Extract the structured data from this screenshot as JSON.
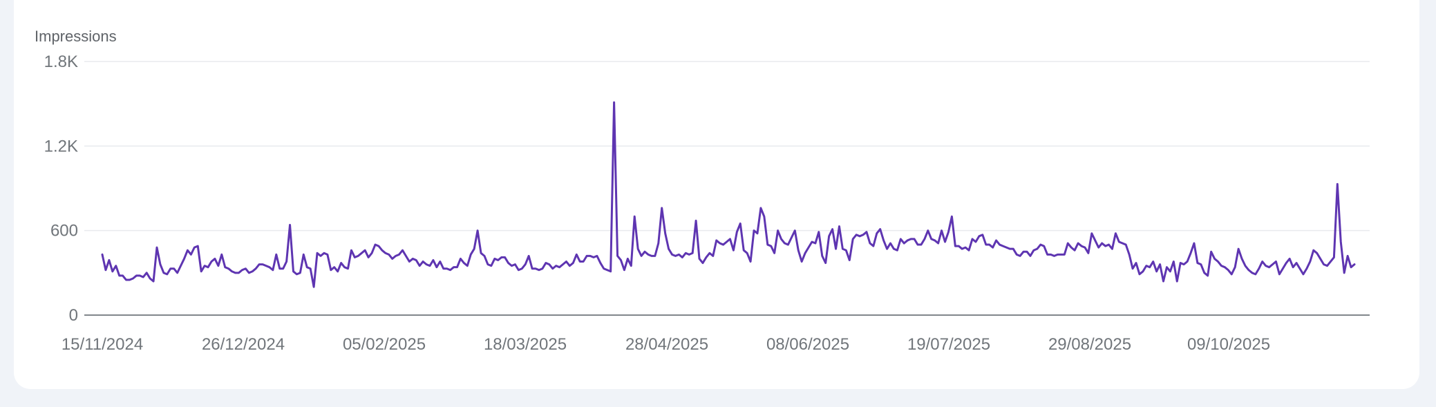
{
  "metric_label": "Impressions",
  "colors": {
    "line": "#5e35b1",
    "grid": "#e8eaed",
    "axis": "#80868b",
    "text": "#70757a",
    "background": "#f0f3f8",
    "card": "#ffffff"
  },
  "chart_data": {
    "type": "line",
    "title": "",
    "ylabel": "Impressions",
    "xlabel": "",
    "ylim": [
      0,
      1800
    ],
    "yticks": [
      0,
      600,
      1200,
      1800
    ],
    "ytick_labels": [
      "0",
      "600",
      "1.2K",
      "1.8K"
    ],
    "xtick_labels": [
      "15/11/2024",
      "26/12/2024",
      "05/02/2025",
      "18/03/2025",
      "28/04/2025",
      "08/06/2025",
      "19/07/2025",
      "29/08/2025",
      "09/10/2025"
    ],
    "grid": true,
    "series": [
      {
        "name": "Impressions",
        "x_start": "15/11/2024",
        "x_step_days": 1,
        "values": [
          430,
          320,
          390,
          310,
          350,
          280,
          280,
          250,
          250,
          260,
          280,
          280,
          270,
          300,
          260,
          240,
          480,
          360,
          300,
          290,
          330,
          330,
          300,
          350,
          400,
          460,
          430,
          480,
          490,
          310,
          350,
          340,
          380,
          400,
          350,
          430,
          340,
          330,
          310,
          300,
          300,
          320,
          330,
          300,
          310,
          330,
          360,
          360,
          350,
          340,
          320,
          430,
          330,
          330,
          380,
          640,
          310,
          290,
          300,
          430,
          340,
          330,
          200,
          440,
          420,
          440,
          430,
          320,
          340,
          310,
          370,
          340,
          330,
          460,
          410,
          420,
          440,
          460,
          410,
          440,
          500,
          490,
          460,
          440,
          430,
          400,
          420,
          430,
          460,
          420,
          380,
          400,
          390,
          350,
          380,
          360,
          350,
          390,
          340,
          380,
          330,
          330,
          320,
          340,
          340,
          400,
          370,
          350,
          430,
          470,
          600,
          440,
          420,
          360,
          350,
          400,
          390,
          410,
          410,
          370,
          350,
          360,
          320,
          330,
          360,
          420,
          330,
          330,
          320,
          330,
          370,
          360,
          330,
          350,
          340,
          360,
          380,
          350,
          370,
          430,
          380,
          380,
          420,
          420,
          410,
          420,
          370,
          330,
          320,
          310,
          1510,
          420,
          390,
          320,
          400,
          350,
          700,
          470,
          420,
          450,
          430,
          420,
          420,
          510,
          760,
          580,
          470,
          430,
          420,
          430,
          410,
          440,
          430,
          440,
          670,
          400,
          370,
          410,
          440,
          420,
          530,
          510,
          500,
          520,
          540,
          460,
          590,
          650,
          460,
          440,
          380,
          600,
          580,
          760,
          700,
          500,
          490,
          440,
          600,
          540,
          510,
          500,
          550,
          600,
          460,
          380,
          440,
          480,
          520,
          510,
          590,
          420,
          370,
          560,
          610,
          470,
          630,
          470,
          460,
          390,
          540,
          570,
          560,
          570,
          590,
          510,
          490,
          580,
          610,
          530,
          470,
          510,
          470,
          460,
          540,
          510,
          530,
          540,
          540,
          500,
          500,
          540,
          600,
          540,
          530,
          510,
          600,
          520,
          590,
          700,
          490,
          490,
          470,
          480,
          460,
          540,
          520,
          560,
          570,
          500,
          500,
          480,
          530,
          500,
          490,
          480,
          470,
          470,
          430,
          420,
          450,
          450,
          420,
          460,
          470,
          500,
          490,
          430,
          430,
          420,
          430,
          430,
          430,
          510,
          480,
          460,
          510,
          490,
          480,
          440,
          580,
          530,
          480,
          510,
          490,
          500,
          470,
          580,
          520,
          510,
          500,
          430,
          330,
          370,
          290,
          310,
          350,
          340,
          380,
          310,
          360,
          240,
          340,
          310,
          380,
          240,
          370,
          360,
          380,
          440,
          510,
          370,
          360,
          300,
          280,
          450,
          400,
          380,
          350,
          340,
          320,
          290,
          340,
          470,
          400,
          350,
          320,
          300,
          290,
          330,
          380,
          350,
          340,
          360,
          380,
          290,
          330,
          370,
          400,
          340,
          370,
          330,
          290,
          330,
          380,
          460,
          440,
          400,
          360,
          350,
          380,
          410,
          930,
          520,
          300,
          420,
          340,
          360
        ]
      }
    ]
  }
}
